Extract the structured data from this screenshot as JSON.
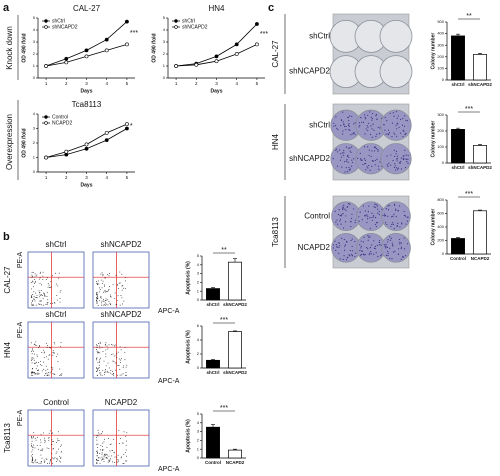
{
  "panel_labels": [
    "a",
    "b",
    "c"
  ],
  "a_row_labels": [
    "Knock down",
    "Overexpression"
  ],
  "chart_data": [
    {
      "type": "line",
      "title": "CAL-27",
      "x_label": "Days",
      "y_label": "OD 490 /fold",
      "x": [
        1,
        2,
        3,
        4,
        5
      ],
      "xlim": [
        0.6,
        5.4
      ],
      "xticks": [
        1,
        2,
        3,
        4,
        5
      ],
      "ylim": [
        0,
        5
      ],
      "yticks": [
        0,
        1,
        2,
        3,
        4,
        5
      ],
      "annotation": "***",
      "series": [
        {
          "name": "shCtrl",
          "color": "#000000",
          "marker": "filled",
          "values": [
            1,
            1.6,
            2.3,
            3.2,
            4.7
          ]
        },
        {
          "name": "shNCAPD2",
          "color": "#000000",
          "marker": "open",
          "values": [
            1,
            1.3,
            1.8,
            2.3,
            2.8
          ]
        }
      ]
    },
    {
      "type": "line",
      "title": "HN4",
      "x_label": "Days",
      "y_label": "OD 490 /fold",
      "x": [
        1,
        2,
        3,
        4,
        5
      ],
      "xlim": [
        0.6,
        5.4
      ],
      "xticks": [
        1,
        2,
        3,
        4,
        5
      ],
      "ylim": [
        0,
        5
      ],
      "yticks": [
        0,
        1,
        2,
        3,
        4,
        5
      ],
      "annotation": "***",
      "series": [
        {
          "name": "shCtrl",
          "color": "#000000",
          "marker": "filled",
          "values": [
            1,
            1.2,
            1.8,
            2.8,
            4.5
          ]
        },
        {
          "name": "shNCAPD2",
          "color": "#000000",
          "marker": "open",
          "values": [
            1,
            1.1,
            1.4,
            2.0,
            2.8
          ]
        }
      ]
    },
    {
      "type": "line",
      "title": "Tca8113",
      "x_label": "Days",
      "y_label": "OD 490 /fold",
      "x": [
        1,
        2,
        3,
        4,
        5
      ],
      "xlim": [
        0.6,
        5.4
      ],
      "xticks": [
        1,
        2,
        3,
        4,
        5
      ],
      "ylim": [
        0,
        4
      ],
      "yticks": [
        0,
        1,
        2,
        3,
        4
      ],
      "annotation": "*",
      "series": [
        {
          "name": "Control",
          "color": "#000000",
          "marker": "filled",
          "values": [
            1,
            1.2,
            1.6,
            2.2,
            3.0
          ]
        },
        {
          "name": "NCAPD2",
          "color": "#000000",
          "marker": "open",
          "values": [
            1,
            1.4,
            1.9,
            2.7,
            3.3
          ]
        }
      ]
    },
    {
      "type": "bar",
      "y_label": "Apoptosis (%)",
      "categories": [
        "shCtrl",
        "shNCAPD2"
      ],
      "values": [
        1.3,
        4.3
      ],
      "errors": [
        0.1,
        0.4
      ],
      "colors": [
        "#000000",
        "#ffffff"
      ],
      "ylim": [
        0,
        5
      ],
      "yticks": [
        0,
        1,
        2,
        3,
        4,
        5
      ],
      "annotation": "**"
    },
    {
      "type": "bar",
      "y_label": "Apoptosis (%)",
      "categories": [
        "shCtrl",
        "shNCAPD2"
      ],
      "values": [
        1.1,
        5.2
      ],
      "errors": [
        0.1,
        0.1
      ],
      "colors": [
        "#000000",
        "#ffffff"
      ],
      "ylim": [
        0,
        6
      ],
      "yticks": [
        0,
        2,
        4,
        6
      ],
      "annotation": "***"
    },
    {
      "type": "bar",
      "y_label": "Apoptosis (%)",
      "categories": [
        "Control",
        "NCAPD2"
      ],
      "values": [
        3.5,
        0.9
      ],
      "errors": [
        0.3,
        0.1
      ],
      "colors": [
        "#000000",
        "#ffffff"
      ],
      "ylim": [
        0,
        5
      ],
      "yticks": [
        0,
        1,
        2,
        3,
        4,
        5
      ],
      "annotation": "***"
    },
    {
      "type": "bar",
      "y_label": "Colony number",
      "categories": [
        "shCtrl",
        "shNCAPD2"
      ],
      "values": [
        380,
        220
      ],
      "errors": [
        15,
        10
      ],
      "colors": [
        "#000000",
        "#ffffff"
      ],
      "ylim": [
        0,
        500
      ],
      "yticks": [
        0,
        100,
        200,
        300,
        400,
        500
      ],
      "annotation": "**"
    },
    {
      "type": "bar",
      "y_label": "Colony number",
      "categories": [
        "shCtrl",
        "shNCAPD2"
      ],
      "values": [
        210,
        110
      ],
      "errors": [
        8,
        6
      ],
      "colors": [
        "#000000",
        "#ffffff"
      ],
      "ylim": [
        0,
        300
      ],
      "yticks": [
        0,
        100,
        200,
        300
      ],
      "annotation": "***"
    },
    {
      "type": "bar",
      "y_label": "Colony number",
      "categories": [
        "Control",
        "NCAPD2"
      ],
      "values": [
        230,
        640
      ],
      "errors": [
        15,
        12
      ],
      "colors": [
        "#000000",
        "#ffffff"
      ],
      "ylim": [
        0,
        800
      ],
      "yticks": [
        0,
        200,
        400,
        600,
        800
      ],
      "annotation": "***"
    }
  ],
  "flow": [
    {
      "cell_line": "CAL-27",
      "groups": [
        "shCtrl",
        "shNCAPD2"
      ],
      "x_axis": "APC-A",
      "y_axis": "PE-A"
    },
    {
      "cell_line": "HN4",
      "groups": [
        "shCtrl",
        "shNCAPD2"
      ],
      "x_axis": "APC-A",
      "y_axis": "PE-A"
    },
    {
      "cell_line": "Tca8113",
      "groups": [
        "Control",
        "NCAPD2"
      ],
      "x_axis": "APC-A",
      "y_axis": "PE-A"
    }
  ],
  "colony": [
    {
      "cell_line": "CAL-27",
      "groups": [
        "shCtrl",
        "shNCAPD2"
      ]
    },
    {
      "cell_line": "HN4",
      "groups": [
        "shCtrl",
        "shNCAPD2"
      ]
    },
    {
      "cell_line": "Tca8113",
      "groups": [
        "Control",
        "NCAPD2"
      ]
    }
  ]
}
